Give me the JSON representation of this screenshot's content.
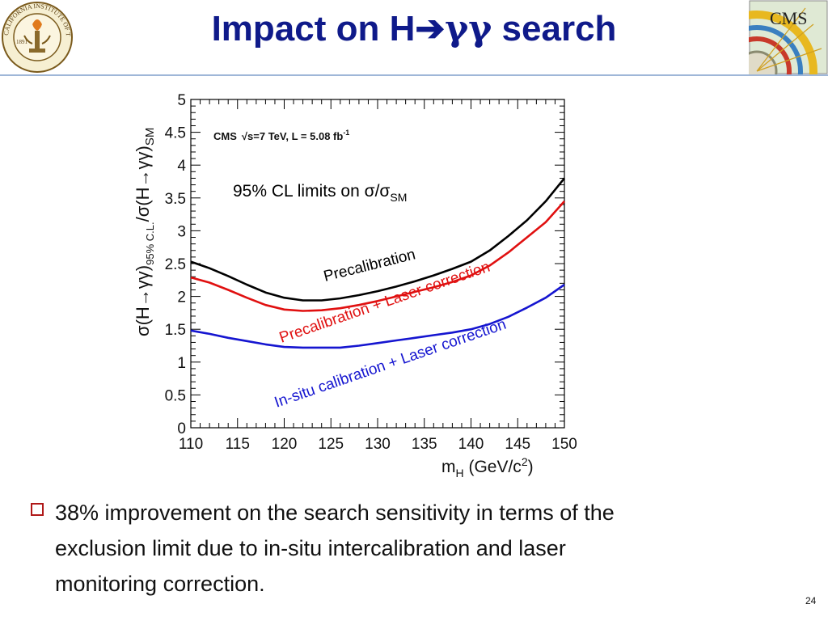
{
  "slide": {
    "title_main": "Impact on H",
    "title_arrow": "➔",
    "title_gamma": "γγ",
    "title_end": " search",
    "bullet_line1": "38% improvement on the search sensitivity in terms of the",
    "bullet_line2": "exclusion limit due to in-situ intercalibration and laser",
    "bullet_line3": "monitoring correction.",
    "page_number": "24",
    "logo_left_text": "CALIFORNIA INSTITUTE OF TECHNOLOGY",
    "logo_left_year": "1891",
    "logo_right_text": "CMS"
  },
  "colors": {
    "title": "#0f1a8a",
    "precalibration": "#000000",
    "laser": "#e01010",
    "insitu": "#1515d0",
    "bullet": "#b01818"
  },
  "chart_data": {
    "type": "line",
    "experiment_label": "CMS",
    "experiment_details": "√s=7 TeV, L = 5.08 fb",
    "experiment_details_sup": "-1",
    "annotation_main": "95% CL limits on σ/σ",
    "annotation_sub": "SM",
    "xlabel_main": "m",
    "xlabel_sub": "H",
    "xlabel_unit": " (GeV/c",
    "xlabel_unit_sup": "2",
    "xlabel_close": ")",
    "ylabel_part1": "σ(H→γγ)",
    "ylabel_sub": "95% C.L.",
    "ylabel_part2": "/σ(H→γγ)",
    "ylabel_sub2": "SM",
    "xlim": [
      110,
      150
    ],
    "ylim": [
      0,
      5
    ],
    "x_ticks": [
      110,
      115,
      120,
      125,
      130,
      135,
      140,
      145,
      150
    ],
    "y_ticks": [
      "0",
      "0.5",
      "1",
      "1.5",
      "2",
      "2.5",
      "3",
      "3.5",
      "4",
      "4.5",
      "5"
    ],
    "x": [
      110,
      112,
      114,
      116,
      118,
      120,
      122,
      124,
      126,
      128,
      130,
      132,
      134,
      136,
      138,
      140,
      142,
      144,
      146,
      148,
      150
    ],
    "series": [
      {
        "name": "Precalibration",
        "values": [
          2.53,
          2.43,
          2.31,
          2.18,
          2.06,
          1.98,
          1.94,
          1.94,
          1.97,
          2.02,
          2.08,
          2.15,
          2.23,
          2.32,
          2.42,
          2.53,
          2.7,
          2.92,
          3.16,
          3.45,
          3.8
        ]
      },
      {
        "name": "Precalibration + Laser correction",
        "values": [
          2.29,
          2.21,
          2.1,
          1.98,
          1.87,
          1.8,
          1.78,
          1.79,
          1.82,
          1.87,
          1.93,
          2.0,
          2.07,
          2.14,
          2.22,
          2.32,
          2.47,
          2.67,
          2.9,
          3.13,
          3.45
        ]
      },
      {
        "name": "In-situ calibration + Laser correction",
        "values": [
          1.48,
          1.43,
          1.37,
          1.32,
          1.27,
          1.23,
          1.22,
          1.22,
          1.22,
          1.25,
          1.29,
          1.33,
          1.37,
          1.41,
          1.45,
          1.5,
          1.58,
          1.69,
          1.83,
          1.98,
          2.18
        ]
      }
    ]
  }
}
